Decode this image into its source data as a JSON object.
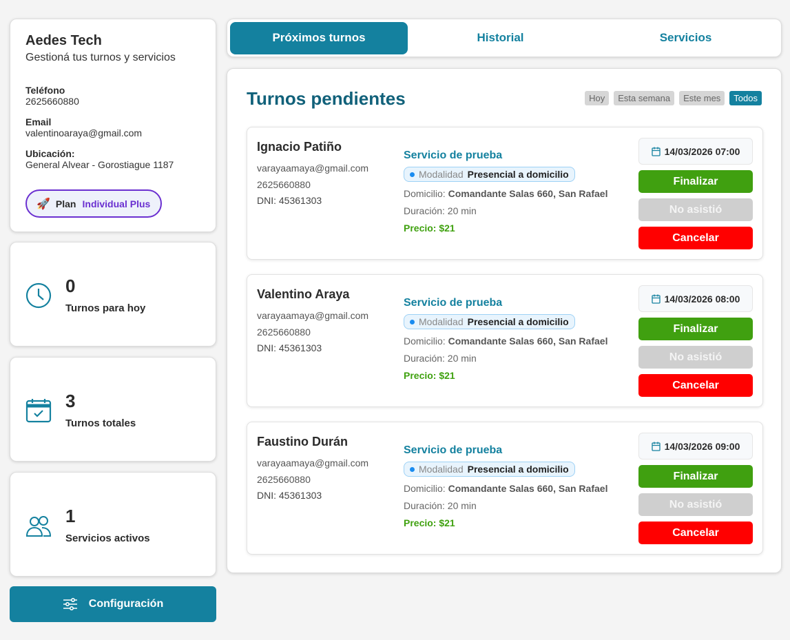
{
  "profile": {
    "name": "Aedes Tech",
    "subtitle": "Gestioná tus turnos y servicios",
    "phone_label": "Teléfono",
    "phone": "2625660880",
    "email_label": "Email",
    "email": "valentinoaraya@gmail.com",
    "location_label": "Ubicación:",
    "location": "General Alvear - Gorostiague 1187",
    "plan_label": "Plan",
    "plan_name": "Individual Plus",
    "plan_icon": "rocket-icon"
  },
  "stats": [
    {
      "value": "0",
      "label": "Turnos para hoy",
      "icon": "clock-icon"
    },
    {
      "value": "3",
      "label": "Turnos totales",
      "icon": "calendar-check-icon"
    },
    {
      "value": "1",
      "label": "Servicios activos",
      "icon": "users-icon"
    }
  ],
  "config_label": "Configuración",
  "tabs": [
    {
      "label": "Próximos turnos",
      "active": true
    },
    {
      "label": "Historial"
    },
    {
      "label": "Servicios"
    }
  ],
  "main": {
    "title": "Turnos pendientes",
    "filters": [
      "Hoy",
      "Esta semana",
      "Este mes",
      "Todos"
    ],
    "active_filter": "Todos"
  },
  "appointments": [
    {
      "name": "Ignacio Patiño",
      "email": "varayaamaya@gmail.com",
      "phone": "2625660880",
      "dni": "DNI: 45361303",
      "service": "Servicio de prueba",
      "modality_label": "Modalidad",
      "modality": "Presencial a domicilio",
      "address_label": "Domicilio:",
      "address": "Comandante Salas 660, San Rafael",
      "duration": "Duración: 20 min",
      "price": "Precio: $21",
      "datetime": "14/03/2026 07:00"
    },
    {
      "name": "Valentino Araya",
      "email": "varayaamaya@gmail.com",
      "phone": "2625660880",
      "dni": "DNI: 45361303",
      "service": "Servicio de prueba",
      "modality_label": "Modalidad",
      "modality": "Presencial a domicilio",
      "address_label": "Domicilio:",
      "address": "Comandante Salas 660, San Rafael",
      "duration": "Duración: 20 min",
      "price": "Precio: $21",
      "datetime": "14/03/2026 08:00"
    },
    {
      "name": "Faustino Durán",
      "email": "varayaamaya@gmail.com",
      "phone": "2625660880",
      "dni": "DNI: 45361303",
      "service": "Servicio de prueba",
      "modality_label": "Modalidad",
      "modality": "Presencial a domicilio",
      "address_label": "Domicilio:",
      "address": "Comandante Salas 660, San Rafael",
      "duration": "Duración: 20 min",
      "price": "Precio: $21",
      "datetime": "14/03/2026 09:00"
    }
  ],
  "actions": {
    "finish": "Finalizar",
    "no_show": "No asistió",
    "cancel": "Cancelar"
  },
  "colors": {
    "primary": "#14819f",
    "finish": "#40a010",
    "no_show": "#cfcfcf",
    "cancel": "#ff0000",
    "plan": "#6a2fd0"
  }
}
